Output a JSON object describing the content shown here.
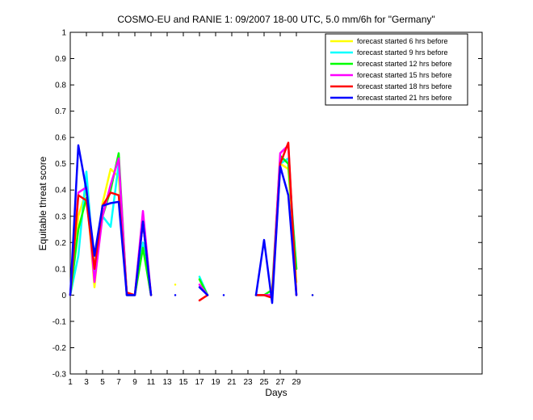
{
  "chart_data": {
    "type": "line",
    "title": "COSMO-EU and RANIE 1: 09/2007 18-00 UTC, 5.0 mm/6h for \"Germany\"",
    "xlabel": "Days",
    "ylabel": "Equitable threat score",
    "x": [
      1,
      2,
      3,
      4,
      5,
      6,
      7,
      8,
      9,
      10,
      11,
      12,
      13,
      14,
      15,
      16,
      17,
      18,
      19,
      20,
      21,
      22,
      23,
      24,
      25,
      26,
      27,
      28,
      29,
      30,
      31
    ],
    "series": [
      {
        "name": "forecast started 6 hrs before",
        "color": "#ffff00",
        "values": [
          0,
          0.3,
          0.4,
          0.03,
          0.35,
          0.48,
          0.45,
          0,
          0,
          0.2,
          0,
          null,
          null,
          0.04,
          null,
          null,
          0.06,
          0,
          null,
          null,
          null,
          null,
          null,
          0,
          0,
          0,
          0.5,
          0.48,
          0.05,
          null,
          0
        ]
      },
      {
        "name": "forecast started 9 hrs before",
        "color": "#00ffff",
        "values": [
          0,
          0.15,
          0.47,
          0.08,
          0.3,
          0.26,
          0.5,
          0,
          0,
          0.2,
          0,
          null,
          null,
          null,
          null,
          null,
          0.07,
          0,
          null,
          null,
          null,
          null,
          null,
          0,
          0,
          0,
          0.5,
          0.52,
          0.1,
          null,
          null
        ]
      },
      {
        "name": "forecast started 12 hrs before",
        "color": "#00ff00",
        "values": [
          0,
          0.25,
          0.37,
          0.1,
          0.3,
          0.4,
          0.54,
          0,
          0,
          0.18,
          0,
          null,
          null,
          null,
          null,
          null,
          0.06,
          0,
          null,
          null,
          null,
          null,
          null,
          0,
          0,
          0.02,
          0.53,
          0.5,
          0.1,
          null,
          null
        ]
      },
      {
        "name": "forecast started 15 hrs before",
        "color": "#ff00ff",
        "values": [
          0,
          0.39,
          0.41,
          0.05,
          0.3,
          0.42,
          0.52,
          0,
          0,
          0.32,
          0,
          null,
          null,
          null,
          null,
          null,
          0.04,
          0,
          null,
          null,
          null,
          null,
          null,
          0,
          0,
          0,
          0.54,
          0.57,
          0,
          null,
          null
        ]
      },
      {
        "name": "forecast started 18 hrs before",
        "color": "#ff0000",
        "values": [
          0,
          0.38,
          0.36,
          0.1,
          0.34,
          0.39,
          0.38,
          0.01,
          0,
          0.28,
          0,
          null,
          null,
          null,
          null,
          null,
          -0.02,
          0,
          null,
          null,
          null,
          null,
          null,
          0,
          0,
          -0.01,
          0.5,
          0.58,
          0,
          null,
          null
        ]
      },
      {
        "name": "forecast started 21 hrs before",
        "color": "#0000ff",
        "values": [
          0,
          0.57,
          0.4,
          0.15,
          0.34,
          0.35,
          0.355,
          0,
          0,
          0.28,
          0,
          null,
          null,
          0,
          null,
          null,
          0.03,
          0,
          null,
          0,
          null,
          null,
          null,
          0,
          0.21,
          -0.03,
          0.49,
          0.38,
          0,
          null,
          0
        ]
      }
    ],
    "xlim": [
      1,
      52
    ],
    "xticks": [
      1,
      3,
      5,
      7,
      9,
      11,
      13,
      15,
      17,
      19,
      21,
      23,
      25,
      27,
      29
    ],
    "ylim": [
      -0.3,
      1
    ],
    "yticks": [
      -0.3,
      -0.2,
      -0.1,
      0,
      0.1,
      0.2,
      0.3,
      0.4,
      0.5,
      0.6,
      0.7,
      0.8,
      0.9,
      1
    ],
    "legend": "upper right"
  }
}
